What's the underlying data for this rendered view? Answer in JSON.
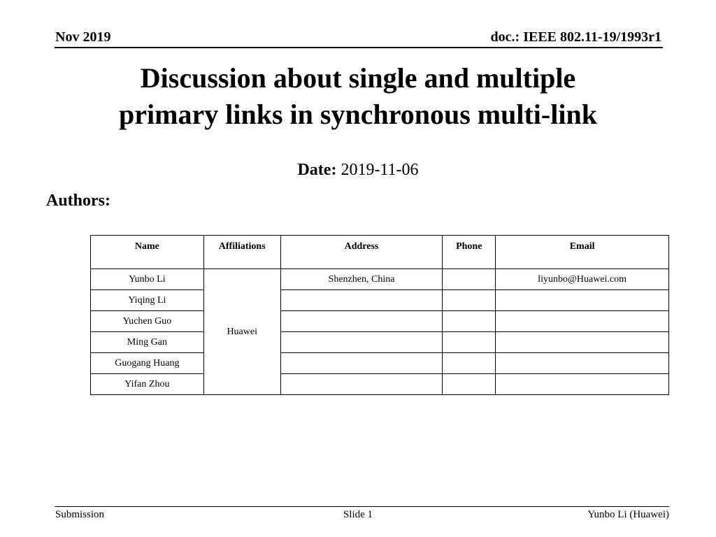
{
  "header": {
    "date": "Nov 2019",
    "doc_id": "doc.: IEEE 802.11-19/1993r1"
  },
  "title": {
    "line1": "Discussion about single and multiple",
    "line2": "primary links in synchronous multi-link"
  },
  "date": {
    "label": "Date:",
    "value": "2019-11-06"
  },
  "authors_label": "Authors:",
  "table": {
    "headers": [
      "Name",
      "Affiliations",
      "Address",
      "Phone",
      "Email"
    ],
    "affiliation": "Huawei",
    "rows": [
      {
        "name": "Yunbo Li",
        "address": "Shenzhen, China",
        "phone": "",
        "email": "liyunbo@Huawei.com"
      },
      {
        "name": "Yiqing Li",
        "address": "",
        "phone": "",
        "email": ""
      },
      {
        "name": "Yuchen Guo",
        "address": "",
        "phone": "",
        "email": ""
      },
      {
        "name": "Ming Gan",
        "address": "",
        "phone": "",
        "email": ""
      },
      {
        "name": "Guogang Huang",
        "address": "",
        "phone": "",
        "email": ""
      },
      {
        "name": "Yifan Zhou",
        "address": "",
        "phone": "",
        "email": ""
      }
    ]
  },
  "footer": {
    "left": "Submission",
    "center": "Slide 1",
    "right": "Yunbo Li (Huawei)"
  }
}
